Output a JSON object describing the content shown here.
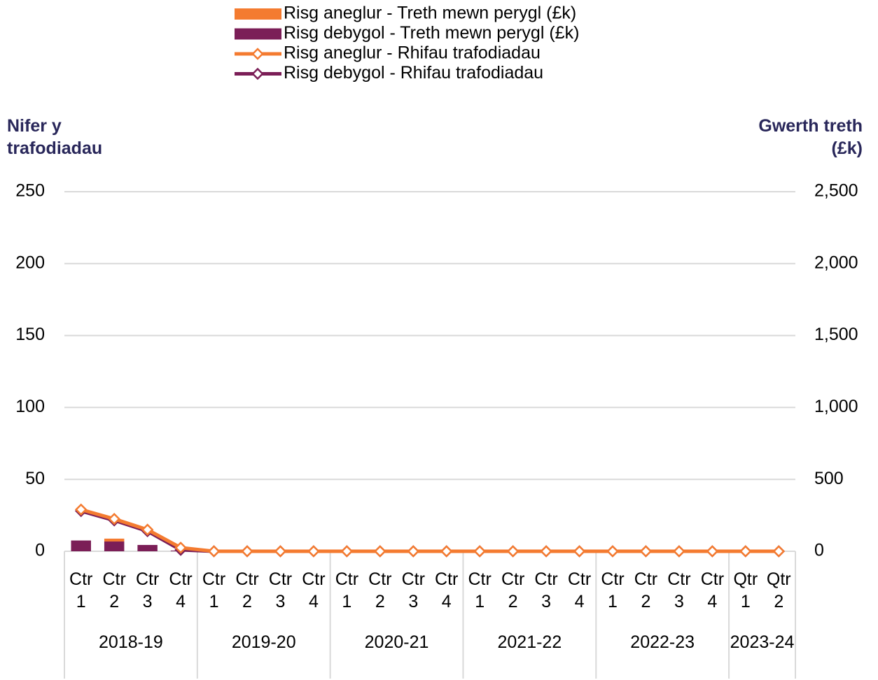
{
  "chart_data": {
    "type": "combo",
    "y_title": "Nifer y trafodiadau",
    "y2_title": "Gwerth treth (£k)",
    "groups": [
      {
        "label": "2018-19",
        "categories": [
          "Ctr 1",
          "Ctr 2",
          "Ctr 3",
          "Ctr 4"
        ]
      },
      {
        "label": "2019-20",
        "categories": [
          "Ctr 1",
          "Ctr 2",
          "Ctr 3",
          "Ctr 4"
        ]
      },
      {
        "label": "2020-21",
        "categories": [
          "Ctr 1",
          "Ctr 2",
          "Ctr 3",
          "Ctr 4"
        ]
      },
      {
        "label": "2021-22",
        "categories": [
          "Ctr 1",
          "Ctr 2",
          "Ctr 3",
          "Ctr 4"
        ]
      },
      {
        "label": "2022-23",
        "categories": [
          "Ctr 1",
          "Ctr 2",
          "Ctr 3",
          "Ctr 4"
        ]
      },
      {
        "label": "2023-24",
        "categories": [
          "Qtr 1",
          "Qtr 2"
        ]
      }
    ],
    "series": [
      {
        "name": "Risg aneglur - Treth mewn perygl (£k)",
        "type": "bar",
        "axis": "y2",
        "color": "#f47b30",
        "values": [
          0,
          20,
          0,
          0,
          0,
          0,
          0,
          0,
          0,
          0,
          0,
          0,
          0,
          0,
          0,
          0,
          0,
          0,
          0,
          0,
          0,
          0
        ]
      },
      {
        "name": "Risg debygol - Treth mewn perygl (£k)",
        "type": "bar",
        "axis": "y2",
        "color": "#7b1e57",
        "values": [
          75,
          68,
          44,
          5,
          0,
          0,
          0,
          0,
          0,
          0,
          0,
          0,
          0,
          0,
          0,
          0,
          0,
          0,
          0,
          0,
          0,
          0
        ]
      },
      {
        "name": "Risg aneglur - Rhifau trafodiadau",
        "type": "line",
        "color": "#f47b30",
        "values": [
          29,
          22.5,
          15,
          2.5,
          0,
          0,
          0,
          0,
          0,
          0,
          0,
          0,
          0,
          0,
          0,
          0,
          0,
          0,
          0,
          0,
          0,
          0
        ]
      },
      {
        "name": "Risg debygol - Rhifau trafodiadau",
        "type": "line",
        "color": "#7b1e57",
        "values": [
          28,
          21.5,
          14,
          1,
          0,
          0,
          0,
          0,
          0,
          0,
          0,
          0,
          0,
          0,
          0,
          0,
          0,
          0,
          0,
          0,
          0,
          0
        ]
      }
    ],
    "ylim": [
      0,
      250
    ],
    "yticks": [
      0,
      50,
      100,
      150,
      200,
      250
    ],
    "y2lim": [
      0,
      2500
    ],
    "y2ticks": [
      0,
      {
        "value": 500,
        "label": "500"
      },
      {
        "value": 1000,
        "label": "1,000"
      },
      {
        "value": 1500,
        "label": "1,500"
      },
      {
        "value": 2000,
        "label": "2,000"
      },
      {
        "value": 2500,
        "label": "2,500"
      }
    ],
    "grid": true
  }
}
